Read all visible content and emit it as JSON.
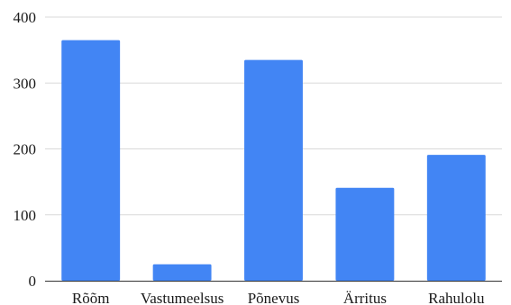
{
  "chart_data": {
    "type": "bar",
    "categories": [
      "Rõõm",
      "Vastumeelsus",
      "Põnevus",
      "Ärritus",
      "Rahulolu"
    ],
    "values": [
      365,
      25,
      335,
      141,
      191
    ],
    "title": "",
    "xlabel": "",
    "ylabel": "",
    "ylim": [
      0,
      400
    ],
    "yticks": [
      0,
      100,
      200,
      300,
      400
    ],
    "grid": true,
    "legend": "none",
    "bar_color": "#4285F4"
  }
}
